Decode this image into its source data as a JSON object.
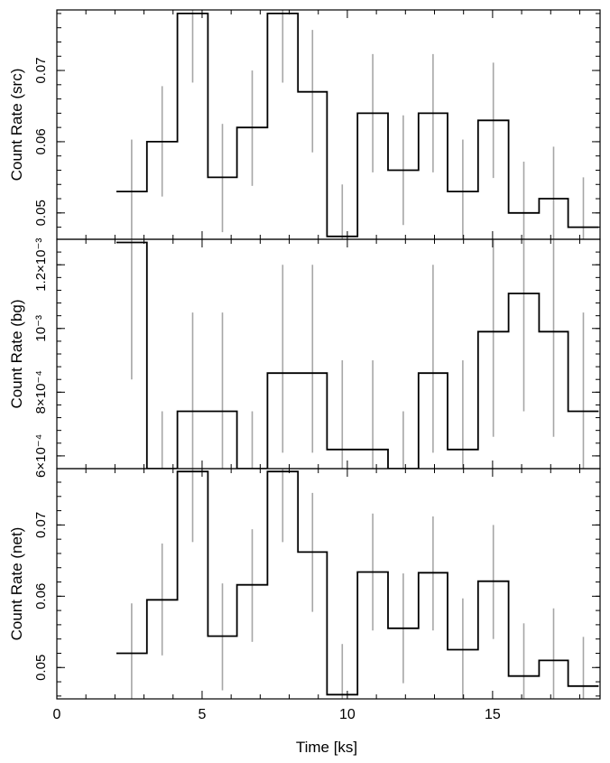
{
  "chart_data": {
    "type": "line",
    "shared_x": {
      "label": "Time [ks]",
      "range": [
        0,
        18.7
      ],
      "ticks": [
        0,
        5,
        10,
        15
      ],
      "tick_labels": [
        "0",
        "5",
        "10",
        "15"
      ]
    },
    "bin_edges": [
      2.05,
      3.1,
      4.15,
      5.2,
      6.2,
      7.25,
      8.3,
      9.3,
      10.35,
      11.4,
      12.45,
      13.45,
      14.5,
      15.55,
      16.6,
      17.6,
      18.65
    ],
    "panels": [
      {
        "ylabel": "Count Rate (src)",
        "ylim": [
          0.0463,
          0.0785
        ],
        "ticks": [
          0.05,
          0.06,
          0.07
        ],
        "tick_labels": [
          "0.05",
          "0.06",
          "0.07"
        ],
        "minor_step": 0.002,
        "values": [
          0.053,
          0.06,
          0.078,
          0.055,
          0.062,
          0.078,
          0.067,
          0.0467,
          0.064,
          0.056,
          0.064,
          0.053,
          0.063,
          0.05,
          0.052,
          0.048
        ],
        "err_low": [
          0.0457,
          0.0523,
          0.0683,
          0.0473,
          0.0538,
          0.0683,
          0.0585,
          0.0456,
          0.0557,
          0.0483,
          0.0557,
          0.0457,
          0.0549,
          0.0457,
          0.0455,
          0.0457
        ],
        "err_high": [
          0.0603,
          0.0678,
          0.0785,
          0.0625,
          0.07,
          0.0785,
          0.0757,
          0.054,
          0.0723,
          0.0637,
          0.0723,
          0.0603,
          0.0711,
          0.0572,
          0.0593,
          0.055
        ]
      },
      {
        "ylabel": "Count Rate (bg)",
        "ylim": [
          0.00056,
          0.00128
        ],
        "ticks": [
          0.0006,
          0.0008,
          0.001,
          0.0012
        ],
        "tick_labels": [
          "6×10⁻⁴",
          "8×10⁻⁴",
          "10⁻³",
          "1.2×10⁻³"
        ],
        "minor_step": 4e-05,
        "values": [
          0.00127,
          0.00056,
          0.00074,
          0.00074,
          0.00056,
          0.00086,
          0.00086,
          0.00062,
          0.00062,
          0.00056,
          0.00086,
          0.00062,
          0.00099,
          0.00111,
          0.00099,
          0.00074
        ],
        "err_low": [
          0.00084,
          0.00056,
          0.00056,
          0.00056,
          0.00056,
          0.00061,
          0.00061,
          0.00056,
          0.00056,
          0.00056,
          0.00061,
          0.00056,
          0.00066,
          0.00074,
          0.00066,
          0.00056
        ],
        "err_high": [
          0.00128,
          0.00074,
          0.00105,
          0.00105,
          0.00074,
          0.0012,
          0.0012,
          0.0009,
          0.0009,
          0.00074,
          0.0012,
          0.0009,
          0.00128,
          0.00128,
          0.00128,
          0.00105
        ]
      },
      {
        "ylabel": "Count Rate (net)",
        "ylim": [
          0.0456,
          0.0779
        ],
        "ticks": [
          0.05,
          0.06,
          0.07
        ],
        "tick_labels": [
          "0.05",
          "0.06",
          "0.07"
        ],
        "minor_step": 0.002,
        "values": [
          0.052,
          0.0595,
          0.0775,
          0.0544,
          0.0616,
          0.0775,
          0.0662,
          0.0462,
          0.0634,
          0.0555,
          0.0633,
          0.0525,
          0.0621,
          0.0488,
          0.051,
          0.0474
        ],
        "err_low": [
          0.0456,
          0.0517,
          0.0676,
          0.0468,
          0.0536,
          0.0676,
          0.0578,
          0.0456,
          0.0552,
          0.0478,
          0.0552,
          0.0456,
          0.054,
          0.0456,
          0.0456,
          0.0456
        ],
        "err_high": [
          0.059,
          0.0674,
          0.0779,
          0.0618,
          0.0694,
          0.0779,
          0.0745,
          0.0533,
          0.0716,
          0.0632,
          0.0712,
          0.0597,
          0.07,
          0.0562,
          0.0583,
          0.0543
        ]
      }
    ],
    "colors": {
      "line": "#000000",
      "error_bar": "#a6a6a6",
      "frame": "#000000"
    }
  }
}
